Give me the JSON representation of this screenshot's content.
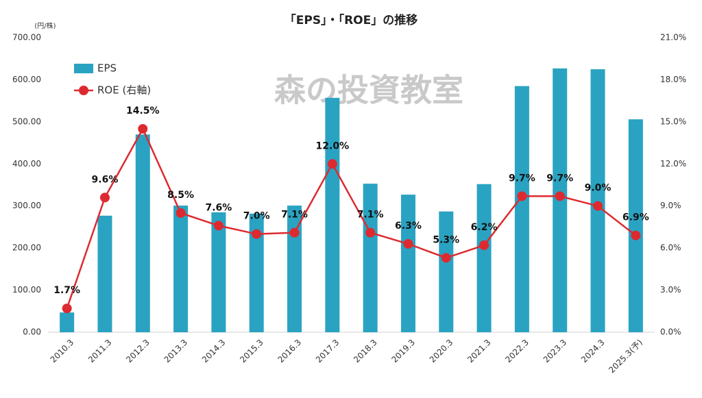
{
  "chart_data": {
    "type": "bar",
    "title": "「EPS」・「ROE」の推移",
    "y_unit": "(円/株)",
    "watermark": "森の投資教室",
    "categories": [
      "2010.3",
      "2011.3",
      "2012.3",
      "2013.3",
      "2014.3",
      "2015.3",
      "2016.3",
      "2017.3",
      "2018.3",
      "2019.3",
      "2020.3",
      "2021.3",
      "2022.3",
      "2023.3",
      "2024.3",
      "2025.3(予)"
    ],
    "series": [
      {
        "name": "EPS",
        "type": "bar",
        "color": "#2aa3c2",
        "values": [
          47,
          277,
          470,
          301,
          285,
          282,
          301,
          557,
          353,
          327,
          287,
          352,
          585,
          627,
          625,
          506
        ]
      },
      {
        "name": "ROE (右軸)",
        "type": "line",
        "color": "#dd2a30",
        "axis": "y2",
        "values": [
          1.7,
          9.6,
          14.5,
          8.5,
          7.6,
          7.0,
          7.1,
          12.0,
          7.1,
          6.3,
          5.3,
          6.2,
          9.7,
          9.7,
          9.0,
          6.9
        ],
        "value_labels": [
          "1.7%",
          "9.6%",
          "14.5%",
          "8.5%",
          "7.6%",
          "7.0%",
          "7.1%",
          "12.0%",
          "7.1%",
          "6.3%",
          "5.3%",
          "6.2%",
          "9.7%",
          "9.7%",
          "9.0%",
          "6.9%"
        ]
      }
    ],
    "ylim": [
      0,
      700
    ],
    "yticks": [
      {
        "value": 0,
        "label": "0.00"
      },
      {
        "value": 100,
        "label": "100.00"
      },
      {
        "value": 200,
        "label": "200.00"
      },
      {
        "value": 300,
        "label": "300.00"
      },
      {
        "value": 400,
        "label": "400.00"
      },
      {
        "value": 500,
        "label": "500.00"
      },
      {
        "value": 600,
        "label": "600.00"
      },
      {
        "value": 700,
        "label": "700.00"
      }
    ],
    "y2lim": [
      0,
      21
    ],
    "y2ticks": [
      {
        "value": 0,
        "label": "0.0%"
      },
      {
        "value": 3,
        "label": "3.0%"
      },
      {
        "value": 6,
        "label": "6.0%"
      },
      {
        "value": 9,
        "label": "9.0%"
      },
      {
        "value": 12,
        "label": "12.0%"
      },
      {
        "value": 15,
        "label": "15.0%"
      },
      {
        "value": 18,
        "label": "18.0%"
      },
      {
        "value": 21,
        "label": "21.0%"
      }
    ],
    "grid": false,
    "legend": "top-left"
  }
}
